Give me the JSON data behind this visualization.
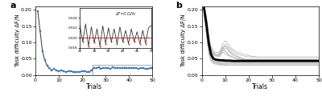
{
  "panel_a": {
    "main_x": [
      1,
      2,
      3,
      4,
      5,
      6,
      7,
      8,
      9,
      10,
      11,
      12,
      13,
      14,
      15,
      16,
      17,
      18,
      19,
      20,
      21,
      22,
      23,
      24,
      25,
      26,
      27,
      28,
      29,
      30,
      31,
      32,
      33,
      34,
      35,
      36,
      37,
      38,
      39,
      40,
      41,
      42,
      43,
      44,
      45,
      46,
      47,
      48,
      49,
      50
    ],
    "main_y": [
      0.197,
      0.135,
      0.072,
      0.045,
      0.028,
      0.02,
      0.015,
      0.018,
      0.013,
      0.012,
      0.015,
      0.011,
      0.009,
      0.011,
      0.012,
      0.01,
      0.008,
      0.01,
      0.009,
      0.011,
      0.012,
      0.01,
      0.009,
      0.015,
      0.022,
      0.02,
      0.023,
      0.019,
      0.022,
      0.02,
      0.021,
      0.019,
      0.023,
      0.02,
      0.022,
      0.021,
      0.02,
      0.022,
      0.021,
      0.02,
      0.022,
      0.021,
      0.02,
      0.019,
      0.021,
      0.02,
      0.018,
      0.019,
      0.021,
      0.022
    ],
    "line_color": "#333333",
    "marker": "s",
    "marker_color": "#3a7bbf",
    "ylabel": "Task difficulty ΔF/N",
    "xlabel": "Trials",
    "xlim": [
      0,
      50
    ],
    "ylim": [
      0.0,
      0.21
    ],
    "yticks": [
      0.0,
      0.05,
      0.1,
      0.15,
      0.2
    ],
    "xticks": [
      0,
      10,
      20,
      30,
      40,
      50
    ],
    "inset": {
      "x": [
        25,
        26,
        27,
        28,
        29,
        30,
        31,
        32,
        33,
        34,
        35,
        36,
        37,
        38,
        39,
        40,
        41,
        42,
        43,
        44,
        45,
        46,
        47,
        48,
        49,
        50
      ],
      "y": [
        0.0225,
        0.0192,
        0.0228,
        0.0183,
        0.0222,
        0.019,
        0.0218,
        0.0183,
        0.0224,
        0.0188,
        0.022,
        0.0192,
        0.0218,
        0.0188,
        0.0222,
        0.0192,
        0.0215,
        0.0188,
        0.0218,
        0.0192,
        0.0212,
        0.0188,
        0.0215,
        0.0188,
        0.022,
        0.0225
      ],
      "red_dots_x": [
        26,
        28,
        30,
        32,
        34,
        36,
        38,
        40,
        42,
        44,
        46,
        48
      ],
      "red_dots_y": [
        0.0192,
        0.0183,
        0.019,
        0.0183,
        0.0188,
        0.0192,
        0.0188,
        0.0192,
        0.0188,
        0.0192,
        0.0188,
        0.0188
      ],
      "hline": 0.02,
      "hline_color": "#e05050",
      "ylim": [
        0.018,
        0.026
      ],
      "xlim": [
        25,
        50
      ],
      "yticks": [
        0.018,
        0.02,
        0.022,
        0.024
      ],
      "xticks": [
        25,
        30,
        35,
        40,
        45,
        50
      ],
      "annotation": "ΔF=0.02N"
    }
  },
  "panel_b": {
    "ylabel": "Task difficulty ΔF/N",
    "xlabel": "Trials",
    "xlim": [
      0,
      50
    ],
    "ylim": [
      0.0,
      0.21
    ],
    "yticks": [
      0.0,
      0.05,
      0.1,
      0.15,
      0.2
    ],
    "xticks": [
      0,
      10,
      20,
      30,
      40,
      50
    ],
    "mean_y": [
      0.205,
      0.158,
      0.098,
      0.063,
      0.05,
      0.047,
      0.046,
      0.045,
      0.045,
      0.044,
      0.044,
      0.044,
      0.043,
      0.043,
      0.043,
      0.043,
      0.043,
      0.043,
      0.043,
      0.043,
      0.043,
      0.043,
      0.043,
      0.043,
      0.043,
      0.043,
      0.043,
      0.043,
      0.043,
      0.043,
      0.043,
      0.043,
      0.043,
      0.043,
      0.043,
      0.043,
      0.043,
      0.043,
      0.043,
      0.043,
      0.043,
      0.043,
      0.043,
      0.043,
      0.043,
      0.043,
      0.043,
      0.043,
      0.043,
      0.043
    ],
    "individual_lines": [
      [
        0.19,
        0.145,
        0.085,
        0.052,
        0.042,
        0.038,
        0.035,
        0.033,
        0.033,
        0.031,
        0.031,
        0.03,
        0.03,
        0.03,
        0.03,
        0.03,
        0.03,
        0.03,
        0.03,
        0.03,
        0.03,
        0.03,
        0.03,
        0.03,
        0.03,
        0.03,
        0.03,
        0.03,
        0.03,
        0.03,
        0.03,
        0.03,
        0.03,
        0.03,
        0.03,
        0.03,
        0.03,
        0.03,
        0.03,
        0.03,
        0.03,
        0.03,
        0.03,
        0.03,
        0.03,
        0.03,
        0.03,
        0.03,
        0.03,
        0.03
      ],
      [
        0.21,
        0.175,
        0.11,
        0.075,
        0.065,
        0.06,
        0.058,
        0.057,
        0.07,
        0.065,
        0.06,
        0.058,
        0.055,
        0.052,
        0.05,
        0.048,
        0.047,
        0.046,
        0.045,
        0.045,
        0.045,
        0.045,
        0.045,
        0.045,
        0.045,
        0.045,
        0.045,
        0.045,
        0.045,
        0.045,
        0.045,
        0.045,
        0.045,
        0.045,
        0.045,
        0.045,
        0.045,
        0.045,
        0.045,
        0.045,
        0.045,
        0.045,
        0.045,
        0.045,
        0.045,
        0.045,
        0.045,
        0.045,
        0.045,
        0.045
      ],
      [
        0.185,
        0.13,
        0.072,
        0.048,
        0.04,
        0.038,
        0.036,
        0.034,
        0.034,
        0.034,
        0.034,
        0.034,
        0.034,
        0.034,
        0.034,
        0.034,
        0.034,
        0.034,
        0.034,
        0.034,
        0.034,
        0.034,
        0.034,
        0.034,
        0.034,
        0.034,
        0.034,
        0.034,
        0.034,
        0.034,
        0.034,
        0.034,
        0.034,
        0.034,
        0.034,
        0.034,
        0.034,
        0.034,
        0.034,
        0.034,
        0.034,
        0.034,
        0.034,
        0.034,
        0.034,
        0.034,
        0.034,
        0.034,
        0.034,
        0.034
      ],
      [
        0.205,
        0.175,
        0.118,
        0.082,
        0.068,
        0.063,
        0.062,
        0.07,
        0.085,
        0.075,
        0.065,
        0.058,
        0.055,
        0.052,
        0.05,
        0.048,
        0.047,
        0.047,
        0.047,
        0.047,
        0.047,
        0.047,
        0.047,
        0.047,
        0.047,
        0.047,
        0.047,
        0.047,
        0.047,
        0.047,
        0.047,
        0.047,
        0.047,
        0.047,
        0.047,
        0.047,
        0.047,
        0.047,
        0.047,
        0.047,
        0.047,
        0.047,
        0.047,
        0.047,
        0.047,
        0.047,
        0.047,
        0.047,
        0.047,
        0.047
      ],
      [
        0.195,
        0.155,
        0.092,
        0.058,
        0.048,
        0.045,
        0.042,
        0.04,
        0.04,
        0.04,
        0.04,
        0.04,
        0.04,
        0.04,
        0.04,
        0.04,
        0.04,
        0.04,
        0.04,
        0.04,
        0.04,
        0.04,
        0.04,
        0.04,
        0.04,
        0.04,
        0.04,
        0.04,
        0.04,
        0.04,
        0.04,
        0.04,
        0.04,
        0.04,
        0.04,
        0.04,
        0.04,
        0.04,
        0.04,
        0.04,
        0.04,
        0.04,
        0.04,
        0.04,
        0.04,
        0.04,
        0.04,
        0.04,
        0.04,
        0.04
      ],
      [
        0.2,
        0.165,
        0.105,
        0.072,
        0.065,
        0.06,
        0.058,
        0.065,
        0.08,
        0.09,
        0.085,
        0.075,
        0.068,
        0.063,
        0.058,
        0.055,
        0.052,
        0.05,
        0.048,
        0.048,
        0.048,
        0.048,
        0.048,
        0.048,
        0.048,
        0.048,
        0.048,
        0.048,
        0.048,
        0.048,
        0.048,
        0.048,
        0.048,
        0.048,
        0.048,
        0.048,
        0.048,
        0.048,
        0.048,
        0.048,
        0.048,
        0.048,
        0.048,
        0.048,
        0.048,
        0.048,
        0.048,
        0.048,
        0.048,
        0.048
      ],
      [
        0.18,
        0.125,
        0.065,
        0.042,
        0.035,
        0.033,
        0.031,
        0.03,
        0.03,
        0.03,
        0.03,
        0.03,
        0.03,
        0.03,
        0.03,
        0.03,
        0.03,
        0.03,
        0.03,
        0.03,
        0.03,
        0.03,
        0.03,
        0.03,
        0.03,
        0.03,
        0.03,
        0.03,
        0.03,
        0.03,
        0.03,
        0.03,
        0.03,
        0.03,
        0.03,
        0.03,
        0.03,
        0.03,
        0.03,
        0.03,
        0.03,
        0.03,
        0.03,
        0.03,
        0.03,
        0.03,
        0.03,
        0.03,
        0.03,
        0.03
      ],
      [
        0.215,
        0.182,
        0.122,
        0.088,
        0.075,
        0.07,
        0.068,
        0.078,
        0.095,
        0.105,
        0.098,
        0.088,
        0.08,
        0.075,
        0.07,
        0.068,
        0.065,
        0.063,
        0.062,
        0.06,
        0.058,
        0.057,
        0.056,
        0.055,
        0.055,
        0.055,
        0.055,
        0.055,
        0.055,
        0.055,
        0.055,
        0.055,
        0.055,
        0.055,
        0.055,
        0.055,
        0.055,
        0.055,
        0.055,
        0.055,
        0.055,
        0.055,
        0.055,
        0.055,
        0.055,
        0.055,
        0.055,
        0.055,
        0.055,
        0.055
      ],
      [
        0.192,
        0.148,
        0.088,
        0.056,
        0.046,
        0.042,
        0.04,
        0.038,
        0.038,
        0.038,
        0.038,
        0.038,
        0.038,
        0.038,
        0.038,
        0.038,
        0.038,
        0.038,
        0.038,
        0.038,
        0.038,
        0.038,
        0.038,
        0.038,
        0.038,
        0.038,
        0.038,
        0.038,
        0.038,
        0.038,
        0.038,
        0.038,
        0.038,
        0.038,
        0.038,
        0.038,
        0.038,
        0.038,
        0.038,
        0.038,
        0.038,
        0.038,
        0.038,
        0.038,
        0.038,
        0.038,
        0.038,
        0.038,
        0.038,
        0.038
      ],
      [
        0.202,
        0.168,
        0.108,
        0.074,
        0.063,
        0.06,
        0.058,
        0.065,
        0.078,
        0.072,
        0.065,
        0.06,
        0.056,
        0.053,
        0.05,
        0.048,
        0.047,
        0.046,
        0.046,
        0.046,
        0.046,
        0.046,
        0.046,
        0.046,
        0.046,
        0.046,
        0.046,
        0.046,
        0.046,
        0.046,
        0.046,
        0.046,
        0.046,
        0.046,
        0.046,
        0.046,
        0.046,
        0.046,
        0.046,
        0.046,
        0.046,
        0.046,
        0.046,
        0.046,
        0.046,
        0.046,
        0.046,
        0.046,
        0.046,
        0.046
      ],
      [
        0.188,
        0.138,
        0.078,
        0.05,
        0.042,
        0.04,
        0.038,
        0.036,
        0.036,
        0.036,
        0.036,
        0.036,
        0.036,
        0.036,
        0.036,
        0.036,
        0.036,
        0.036,
        0.036,
        0.036,
        0.036,
        0.036,
        0.036,
        0.036,
        0.036,
        0.036,
        0.036,
        0.036,
        0.036,
        0.036,
        0.036,
        0.036,
        0.036,
        0.036,
        0.036,
        0.036,
        0.036,
        0.036,
        0.036,
        0.036,
        0.036,
        0.036,
        0.036,
        0.036,
        0.036,
        0.036,
        0.036,
        0.036,
        0.036,
        0.036
      ],
      [
        0.198,
        0.162,
        0.102,
        0.07,
        0.062,
        0.058,
        0.056,
        0.062,
        0.075,
        0.082,
        0.078,
        0.068,
        0.062,
        0.058,
        0.054,
        0.052,
        0.05,
        0.048,
        0.047,
        0.047,
        0.047,
        0.047,
        0.047,
        0.047,
        0.047,
        0.047,
        0.047,
        0.047,
        0.047,
        0.047,
        0.047,
        0.047,
        0.047,
        0.047,
        0.047,
        0.047,
        0.047,
        0.047,
        0.047,
        0.047,
        0.047,
        0.047,
        0.047,
        0.047,
        0.047,
        0.047,
        0.047,
        0.047,
        0.047,
        0.047
      ],
      [
        0.193,
        0.15,
        0.09,
        0.058,
        0.048,
        0.045,
        0.042,
        0.04,
        0.04,
        0.04,
        0.04,
        0.04,
        0.04,
        0.04,
        0.04,
        0.04,
        0.04,
        0.04,
        0.04,
        0.04,
        0.04,
        0.04,
        0.04,
        0.04,
        0.04,
        0.04,
        0.04,
        0.04,
        0.04,
        0.04,
        0.04,
        0.04,
        0.04,
        0.04,
        0.04,
        0.04,
        0.04,
        0.04,
        0.04,
        0.04,
        0.04,
        0.04,
        0.04,
        0.04,
        0.04,
        0.04,
        0.04,
        0.04,
        0.04,
        0.04
      ],
      [
        0.208,
        0.178,
        0.118,
        0.082,
        0.07,
        0.065,
        0.062,
        0.072,
        0.088,
        0.095,
        0.09,
        0.082,
        0.075,
        0.07,
        0.065,
        0.062,
        0.06,
        0.058,
        0.057,
        0.056,
        0.055,
        0.055,
        0.055,
        0.055,
        0.055,
        0.055,
        0.055,
        0.055,
        0.055,
        0.055,
        0.055,
        0.055,
        0.055,
        0.055,
        0.055,
        0.055,
        0.055,
        0.055,
        0.055,
        0.055,
        0.055,
        0.055,
        0.055,
        0.055,
        0.055,
        0.055,
        0.055,
        0.055,
        0.055,
        0.055
      ],
      [
        0.185,
        0.132,
        0.072,
        0.046,
        0.038,
        0.035,
        0.033,
        0.031,
        0.031,
        0.031,
        0.031,
        0.031,
        0.031,
        0.031,
        0.031,
        0.031,
        0.031,
        0.031,
        0.031,
        0.031,
        0.031,
        0.031,
        0.031,
        0.031,
        0.031,
        0.031,
        0.031,
        0.031,
        0.031,
        0.031,
        0.031,
        0.031,
        0.031,
        0.031,
        0.031,
        0.031,
        0.031,
        0.031,
        0.031,
        0.031,
        0.031,
        0.031,
        0.031,
        0.031,
        0.031,
        0.031,
        0.031,
        0.031,
        0.031,
        0.031
      ],
      [
        0.203,
        0.17,
        0.11,
        0.076,
        0.065,
        0.06,
        0.06,
        0.068,
        0.082,
        0.088,
        0.082,
        0.072,
        0.066,
        0.062,
        0.058,
        0.055,
        0.052,
        0.05,
        0.048,
        0.048,
        0.048,
        0.048,
        0.048,
        0.048,
        0.048,
        0.048,
        0.048,
        0.048,
        0.048,
        0.048,
        0.048,
        0.048,
        0.048,
        0.048,
        0.048,
        0.048,
        0.048,
        0.048,
        0.048,
        0.048,
        0.048,
        0.048,
        0.048,
        0.048,
        0.048,
        0.048,
        0.048,
        0.048,
        0.048,
        0.048
      ]
    ],
    "indiv_color": "#bbbbbb",
    "mean_color": "#000000",
    "mean_lw": 2.0
  }
}
